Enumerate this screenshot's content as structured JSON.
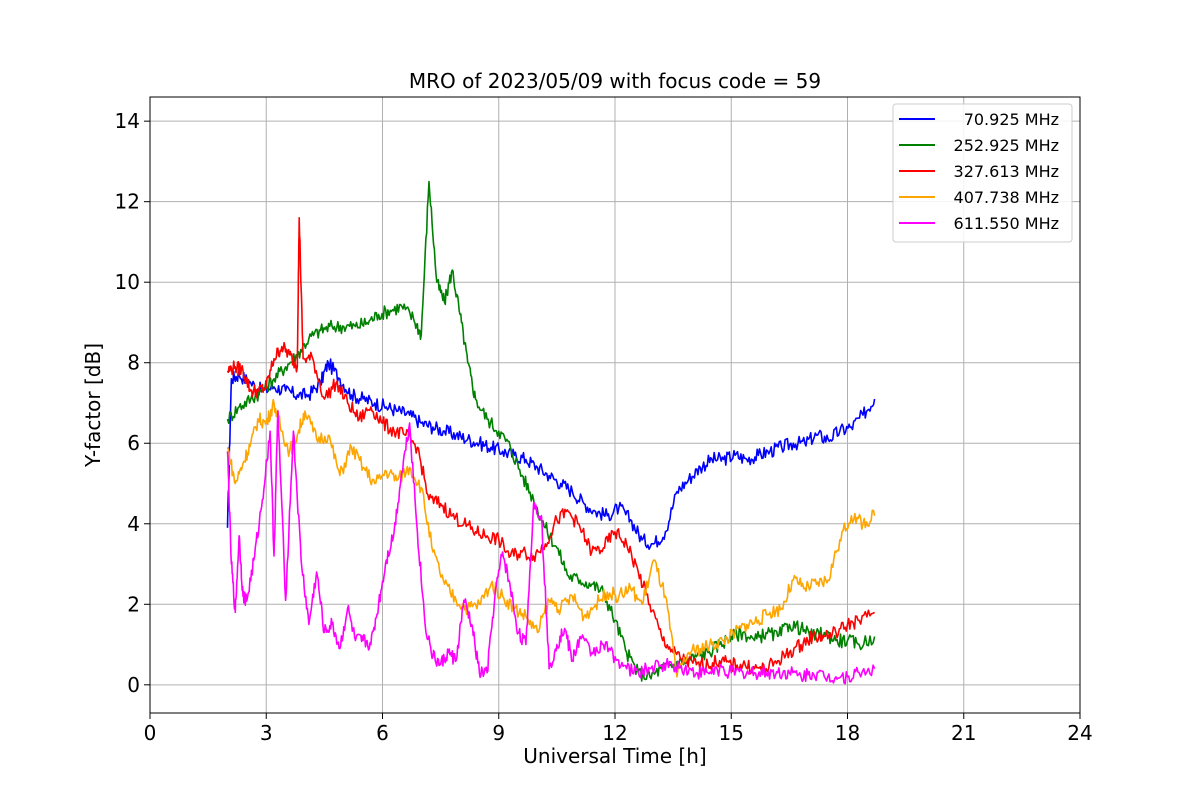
{
  "chart_data": {
    "type": "line",
    "title": "MRO of 2023/05/09 with focus code = 59",
    "xlabel": "Universal Time [h]",
    "ylabel": "Y-factor [dB]",
    "xlim": [
      0,
      24
    ],
    "ylim": [
      -0.7,
      14.6
    ],
    "xticks": [
      0,
      3,
      6,
      9,
      12,
      15,
      18,
      21,
      24
    ],
    "yticks": [
      0,
      2,
      4,
      6,
      8,
      10,
      12,
      14
    ],
    "grid": true,
    "legend_position": "top-right",
    "series": [
      {
        "name": "70.925 MHz",
        "color": "#0000ff",
        "points": [
          [
            2.0,
            3.9
          ],
          [
            2.1,
            7.6
          ],
          [
            2.3,
            7.7
          ],
          [
            2.6,
            7.5
          ],
          [
            2.9,
            7.3
          ],
          [
            3.2,
            7.4
          ],
          [
            3.5,
            7.3
          ],
          [
            3.8,
            7.2
          ],
          [
            4.1,
            7.2
          ],
          [
            4.4,
            7.5
          ],
          [
            4.6,
            8.0
          ],
          [
            4.9,
            7.6
          ],
          [
            5.2,
            7.2
          ],
          [
            5.5,
            7.1
          ],
          [
            5.8,
            7.0
          ],
          [
            6.1,
            6.9
          ],
          [
            6.4,
            6.8
          ],
          [
            6.7,
            6.7
          ],
          [
            7.0,
            6.5
          ],
          [
            7.3,
            6.4
          ],
          [
            7.6,
            6.3
          ],
          [
            7.9,
            6.2
          ],
          [
            8.2,
            6.1
          ],
          [
            8.5,
            6.0
          ],
          [
            8.8,
            5.9
          ],
          [
            9.1,
            5.8
          ],
          [
            9.4,
            5.7
          ],
          [
            9.7,
            5.6
          ],
          [
            10.0,
            5.4
          ],
          [
            10.3,
            5.2
          ],
          [
            10.6,
            5.0
          ],
          [
            10.9,
            4.8
          ],
          [
            11.2,
            4.5
          ],
          [
            11.5,
            4.3
          ],
          [
            11.8,
            4.2
          ],
          [
            12.1,
            4.4
          ],
          [
            12.4,
            4.1
          ],
          [
            12.7,
            3.6
          ],
          [
            13.0,
            3.5
          ],
          [
            13.3,
            3.8
          ],
          [
            13.6,
            4.8
          ],
          [
            13.9,
            5.1
          ],
          [
            14.2,
            5.4
          ],
          [
            14.5,
            5.6
          ],
          [
            14.8,
            5.6
          ],
          [
            15.1,
            5.7
          ],
          [
            15.4,
            5.6
          ],
          [
            15.7,
            5.7
          ],
          [
            16.0,
            5.8
          ],
          [
            16.3,
            5.9
          ],
          [
            16.6,
            6.0
          ],
          [
            16.9,
            6.0
          ],
          [
            17.2,
            6.2
          ],
          [
            17.5,
            6.1
          ],
          [
            17.8,
            6.3
          ],
          [
            18.1,
            6.4
          ],
          [
            18.4,
            6.7
          ],
          [
            18.7,
            7.1
          ]
        ]
      },
      {
        "name": "252.925 MHz",
        "color": "#008000",
        "points": [
          [
            2.0,
            6.6
          ],
          [
            2.3,
            6.9
          ],
          [
            2.6,
            7.1
          ],
          [
            2.9,
            7.3
          ],
          [
            3.2,
            7.6
          ],
          [
            3.5,
            7.9
          ],
          [
            3.8,
            8.2
          ],
          [
            4.1,
            8.6
          ],
          [
            4.4,
            8.8
          ],
          [
            4.7,
            8.9
          ],
          [
            5.0,
            8.9
          ],
          [
            5.3,
            8.9
          ],
          [
            5.6,
            9.0
          ],
          [
            5.9,
            9.2
          ],
          [
            6.2,
            9.3
          ],
          [
            6.5,
            9.4
          ],
          [
            6.8,
            9.1
          ],
          [
            7.0,
            8.7
          ],
          [
            7.2,
            12.5
          ],
          [
            7.4,
            10.0
          ],
          [
            7.6,
            9.5
          ],
          [
            7.8,
            10.3
          ],
          [
            8.0,
            9.2
          ],
          [
            8.2,
            8.0
          ],
          [
            8.4,
            7.1
          ],
          [
            8.7,
            6.6
          ],
          [
            9.0,
            6.3
          ],
          [
            9.3,
            5.9
          ],
          [
            9.6,
            5.2
          ],
          [
            9.9,
            4.6
          ],
          [
            10.2,
            3.9
          ],
          [
            10.5,
            3.4
          ],
          [
            10.8,
            2.7
          ],
          [
            11.1,
            2.6
          ],
          [
            11.4,
            2.5
          ],
          [
            11.7,
            2.3
          ],
          [
            12.0,
            1.6
          ],
          [
            12.3,
            0.8
          ],
          [
            12.6,
            0.3
          ],
          [
            12.9,
            0.2
          ],
          [
            13.2,
            0.4
          ],
          [
            13.5,
            0.5
          ],
          [
            13.8,
            0.6
          ],
          [
            14.1,
            0.7
          ],
          [
            14.4,
            0.8
          ],
          [
            14.7,
            1.0
          ],
          [
            15.0,
            1.2
          ],
          [
            15.3,
            1.3
          ],
          [
            15.6,
            1.1
          ],
          [
            15.9,
            1.3
          ],
          [
            16.2,
            1.2
          ],
          [
            16.5,
            1.5
          ],
          [
            16.8,
            1.4
          ],
          [
            17.1,
            1.2
          ],
          [
            17.4,
            1.3
          ],
          [
            17.7,
            1.1
          ],
          [
            18.0,
            1.1
          ],
          [
            18.3,
            1.0
          ],
          [
            18.7,
            1.2
          ]
        ]
      },
      {
        "name": "327.613 MHz",
        "color": "#ff0000",
        "points": [
          [
            2.0,
            7.8
          ],
          [
            2.2,
            7.9
          ],
          [
            2.4,
            7.8
          ],
          [
            2.6,
            7.3
          ],
          [
            2.8,
            7.3
          ],
          [
            3.0,
            7.4
          ],
          [
            3.2,
            8.1
          ],
          [
            3.4,
            8.4
          ],
          [
            3.6,
            8.2
          ],
          [
            3.8,
            7.9
          ],
          [
            3.85,
            11.6
          ],
          [
            3.95,
            8.1
          ],
          [
            4.2,
            8.1
          ],
          [
            4.5,
            7.1
          ],
          [
            4.8,
            7.5
          ],
          [
            5.1,
            7.0
          ],
          [
            5.4,
            6.6
          ],
          [
            5.7,
            6.9
          ],
          [
            6.0,
            6.5
          ],
          [
            6.3,
            6.3
          ],
          [
            6.6,
            6.2
          ],
          [
            6.9,
            5.9
          ],
          [
            7.2,
            4.6
          ],
          [
            7.5,
            4.5
          ],
          [
            7.8,
            4.2
          ],
          [
            8.1,
            4.0
          ],
          [
            8.4,
            3.8
          ],
          [
            8.7,
            3.7
          ],
          [
            9.0,
            3.6
          ],
          [
            9.3,
            3.2
          ],
          [
            9.6,
            3.3
          ],
          [
            9.9,
            3.2
          ],
          [
            10.2,
            3.5
          ],
          [
            10.5,
            4.1
          ],
          [
            10.8,
            4.3
          ],
          [
            11.1,
            3.9
          ],
          [
            11.4,
            3.3
          ],
          [
            11.7,
            3.4
          ],
          [
            12.0,
            3.8
          ],
          [
            12.3,
            3.5
          ],
          [
            12.6,
            2.8
          ],
          [
            12.9,
            2.0
          ],
          [
            13.2,
            1.2
          ],
          [
            13.5,
            0.8
          ],
          [
            13.8,
            0.6
          ],
          [
            14.1,
            0.5
          ],
          [
            14.4,
            0.5
          ],
          [
            14.7,
            0.6
          ],
          [
            15.0,
            0.5
          ],
          [
            15.3,
            0.5
          ],
          [
            15.6,
            0.4
          ],
          [
            15.9,
            0.4
          ],
          [
            16.2,
            0.6
          ],
          [
            16.5,
            0.8
          ],
          [
            16.8,
            1.0
          ],
          [
            17.1,
            1.2
          ],
          [
            17.4,
            1.2
          ],
          [
            17.7,
            1.3
          ],
          [
            18.0,
            1.5
          ],
          [
            18.3,
            1.6
          ],
          [
            18.7,
            1.8
          ]
        ]
      },
      {
        "name": "407.738 MHz",
        "color": "#ffa500",
        "points": [
          [
            2.0,
            5.9
          ],
          [
            2.2,
            5.0
          ],
          [
            2.4,
            5.5
          ],
          [
            2.6,
            6.0
          ],
          [
            2.8,
            6.6
          ],
          [
            3.0,
            6.5
          ],
          [
            3.2,
            7.0
          ],
          [
            3.4,
            6.3
          ],
          [
            3.6,
            5.8
          ],
          [
            3.8,
            6.2
          ],
          [
            4.0,
            6.8
          ],
          [
            4.3,
            6.1
          ],
          [
            4.6,
            6.2
          ],
          [
            4.9,
            5.2
          ],
          [
            5.2,
            5.9
          ],
          [
            5.5,
            5.4
          ],
          [
            5.8,
            5.0
          ],
          [
            6.1,
            5.3
          ],
          [
            6.4,
            5.1
          ],
          [
            6.7,
            5.4
          ],
          [
            7.0,
            4.9
          ],
          [
            7.3,
            3.3
          ],
          [
            7.6,
            2.5
          ],
          [
            7.9,
            2.1
          ],
          [
            8.2,
            1.9
          ],
          [
            8.5,
            2.0
          ],
          [
            8.8,
            2.5
          ],
          [
            9.1,
            2.2
          ],
          [
            9.4,
            1.9
          ],
          [
            9.7,
            1.7
          ],
          [
            10.0,
            1.3
          ],
          [
            10.3,
            2.1
          ],
          [
            10.6,
            1.9
          ],
          [
            10.9,
            2.2
          ],
          [
            11.2,
            1.7
          ],
          [
            11.5,
            2.0
          ],
          [
            11.8,
            2.3
          ],
          [
            12.1,
            2.2
          ],
          [
            12.4,
            2.4
          ],
          [
            12.7,
            2.0
          ],
          [
            13.0,
            3.1
          ],
          [
            13.3,
            2.2
          ],
          [
            13.6,
            0.2
          ],
          [
            13.9,
            0.8
          ],
          [
            14.2,
            0.9
          ],
          [
            14.5,
            1.0
          ],
          [
            14.8,
            1.1
          ],
          [
            15.1,
            1.3
          ],
          [
            15.4,
            1.5
          ],
          [
            15.7,
            1.6
          ],
          [
            16.0,
            1.8
          ],
          [
            16.3,
            1.9
          ],
          [
            16.6,
            2.6
          ],
          [
            16.9,
            2.4
          ],
          [
            17.2,
            2.5
          ],
          [
            17.5,
            2.6
          ],
          [
            17.8,
            3.6
          ],
          [
            18.1,
            4.2
          ],
          [
            18.4,
            4.0
          ],
          [
            18.7,
            4.2
          ]
        ]
      },
      {
        "name": "611.550 MHz",
        "color": "#ff00ff",
        "points": [
          [
            2.0,
            5.8
          ],
          [
            2.1,
            3.0
          ],
          [
            2.2,
            1.8
          ],
          [
            2.3,
            3.7
          ],
          [
            2.4,
            2.2
          ],
          [
            2.5,
            2.1
          ],
          [
            2.7,
            3.2
          ],
          [
            2.9,
            4.6
          ],
          [
            3.1,
            6.3
          ],
          [
            3.2,
            3.2
          ],
          [
            3.3,
            6.8
          ],
          [
            3.5,
            2.1
          ],
          [
            3.7,
            6.3
          ],
          [
            3.9,
            3.1
          ],
          [
            4.1,
            1.5
          ],
          [
            4.3,
            2.8
          ],
          [
            4.5,
            1.3
          ],
          [
            4.7,
            1.5
          ],
          [
            4.9,
            0.9
          ],
          [
            5.1,
            1.9
          ],
          [
            5.3,
            1.1
          ],
          [
            5.5,
            1.1
          ],
          [
            5.7,
            1.0
          ],
          [
            5.9,
            2.0
          ],
          [
            6.1,
            3.1
          ],
          [
            6.3,
            3.8
          ],
          [
            6.5,
            5.3
          ],
          [
            6.7,
            6.5
          ],
          [
            6.9,
            3.8
          ],
          [
            7.1,
            1.5
          ],
          [
            7.3,
            0.7
          ],
          [
            7.5,
            0.5
          ],
          [
            7.7,
            0.8
          ],
          [
            7.9,
            0.6
          ],
          [
            8.1,
            2.1
          ],
          [
            8.3,
            1.5
          ],
          [
            8.5,
            0.3
          ],
          [
            8.7,
            0.3
          ],
          [
            8.9,
            2.2
          ],
          [
            9.1,
            3.3
          ],
          [
            9.3,
            2.4
          ],
          [
            9.5,
            1.3
          ],
          [
            9.7,
            1.0
          ],
          [
            9.9,
            4.5
          ],
          [
            10.1,
            4.2
          ],
          [
            10.3,
            0.4
          ],
          [
            10.5,
            1.0
          ],
          [
            10.7,
            1.4
          ],
          [
            10.9,
            0.6
          ],
          [
            11.1,
            1.2
          ],
          [
            11.4,
            0.8
          ],
          [
            11.7,
            1.0
          ],
          [
            12.0,
            0.7
          ],
          [
            12.3,
            0.4
          ],
          [
            12.6,
            0.3
          ],
          [
            12.9,
            0.4
          ],
          [
            13.2,
            0.5
          ],
          [
            13.5,
            0.5
          ],
          [
            13.8,
            0.4
          ],
          [
            14.1,
            0.3
          ],
          [
            14.4,
            0.3
          ],
          [
            14.7,
            0.4
          ],
          [
            15.0,
            0.3
          ],
          [
            15.3,
            0.3
          ],
          [
            15.6,
            0.3
          ],
          [
            15.9,
            0.3
          ],
          [
            16.2,
            0.3
          ],
          [
            16.5,
            0.3
          ],
          [
            16.8,
            0.2
          ],
          [
            17.1,
            0.3
          ],
          [
            17.4,
            0.2
          ],
          [
            17.7,
            0.2
          ],
          [
            18.0,
            0.2
          ],
          [
            18.3,
            0.3
          ],
          [
            18.7,
            0.4
          ]
        ]
      }
    ]
  }
}
